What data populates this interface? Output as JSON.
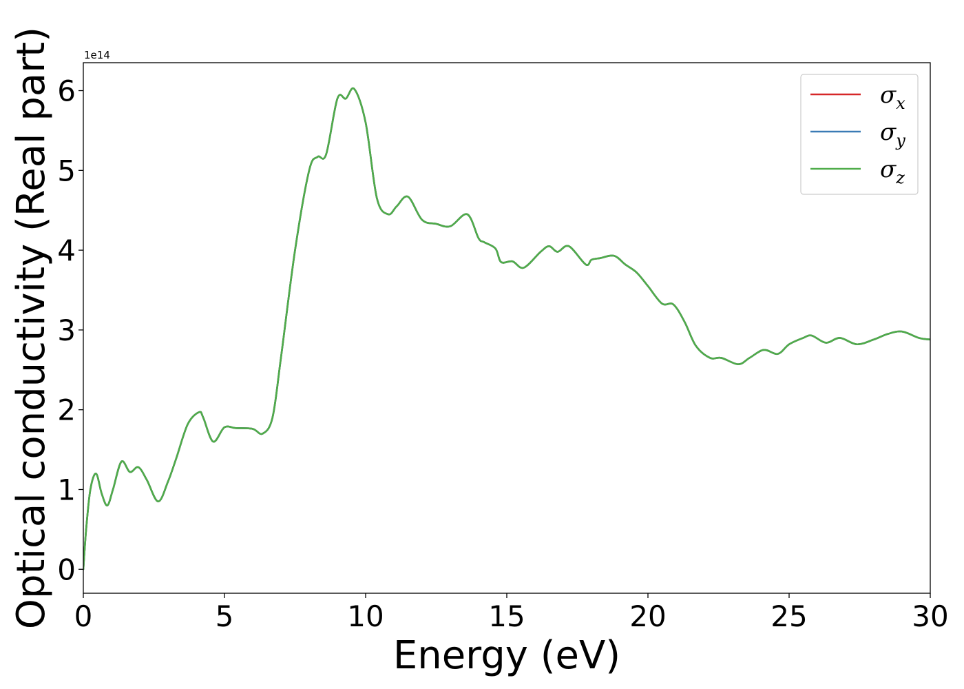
{
  "chart_data": {
    "type": "line",
    "xlabel": "Energy (eV)",
    "ylabel": "Optical conductivity (Real part)",
    "y_offset_text": "1e14",
    "xlim": [
      0,
      30
    ],
    "ylim": [
      -0.3,
      6.35
    ],
    "x_ticks": [
      0,
      5,
      10,
      15,
      20,
      25,
      30
    ],
    "x_tick_labels": [
      "0",
      "5",
      "10",
      "15",
      "20",
      "25",
      "30"
    ],
    "y_ticks": [
      0,
      1,
      2,
      3,
      4,
      5,
      6
    ],
    "y_tick_labels": [
      "0",
      "1",
      "2",
      "3",
      "4",
      "5",
      "6"
    ],
    "y_scale_note": "values in units of 1e14",
    "grid": false,
    "legend_position": "top-right",
    "series": [
      {
        "name": "σ_x",
        "symbol": "σ",
        "sub": "x",
        "color": "#d62728"
      },
      {
        "name": "σ_y",
        "symbol": "σ",
        "sub": "y",
        "color": "#3a7bb5"
      },
      {
        "name": "σ_z",
        "symbol": "σ",
        "sub": "z",
        "color": "#4fac4a"
      }
    ],
    "x": [
      0,
      0.1,
      0.25,
      0.45,
      0.65,
      0.85,
      1.05,
      1.35,
      1.65,
      1.95,
      2.25,
      2.65,
      3.0,
      3.3,
      3.7,
      4.1,
      4.25,
      4.6,
      5.0,
      5.4,
      6.0,
      6.35,
      6.7,
      7.0,
      7.5,
      8.0,
      8.3,
      8.6,
      9.0,
      9.3,
      9.6,
      10.0,
      10.4,
      10.8,
      11.1,
      11.5,
      12.0,
      12.5,
      13.0,
      13.6,
      14.0,
      14.2,
      14.6,
      14.8,
      15.2,
      15.6,
      16.2,
      16.5,
      16.8,
      17.2,
      17.8,
      18.0,
      18.3,
      18.8,
      19.2,
      19.6,
      20.0,
      20.5,
      20.9,
      21.3,
      21.7,
      22.2,
      22.6,
      23.2,
      23.6,
      24.1,
      24.6,
      25.0,
      25.5,
      25.8,
      26.3,
      26.8,
      27.4,
      28.0,
      28.5,
      29.0,
      29.6,
      30.0
    ],
    "y": [
      0.0,
      0.5,
      1.0,
      1.2,
      0.95,
      0.8,
      1.0,
      1.35,
      1.22,
      1.28,
      1.12,
      0.85,
      1.1,
      1.4,
      1.82,
      1.97,
      1.9,
      1.6,
      1.78,
      1.77,
      1.76,
      1.7,
      1.9,
      2.65,
      4.0,
      5.0,
      5.17,
      5.2,
      5.9,
      5.9,
      6.02,
      5.6,
      4.65,
      4.45,
      4.55,
      4.67,
      4.38,
      4.33,
      4.3,
      4.45,
      4.15,
      4.1,
      4.02,
      3.85,
      3.86,
      3.78,
      3.98,
      4.05,
      3.98,
      4.05,
      3.82,
      3.88,
      3.9,
      3.93,
      3.82,
      3.72,
      3.55,
      3.33,
      3.32,
      3.1,
      2.8,
      2.65,
      2.65,
      2.57,
      2.65,
      2.75,
      2.7,
      2.82,
      2.9,
      2.93,
      2.84,
      2.9,
      2.82,
      2.88,
      2.95,
      2.98,
      2.9,
      2.88
    ]
  }
}
